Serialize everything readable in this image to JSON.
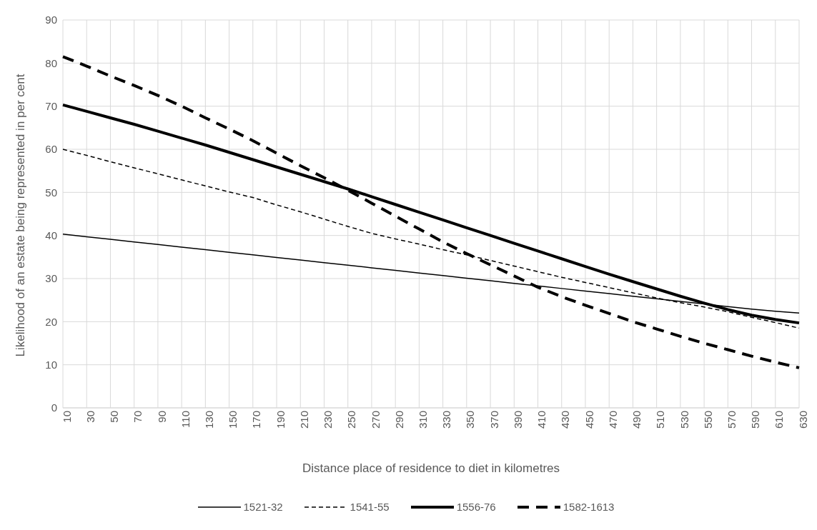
{
  "chart_data": {
    "type": "line",
    "xlabel": "Distance place of residence to diet in kilometres",
    "ylabel": "Likelihood of an estate being represented in per cent",
    "categories": [
      "10",
      "30",
      "50",
      "70",
      "90",
      "110",
      "130",
      "150",
      "170",
      "190",
      "210",
      "230",
      "250",
      "270",
      "290",
      "310",
      "330",
      "350",
      "370",
      "390",
      "410",
      "430",
      "450",
      "470",
      "490",
      "510",
      "530",
      "550",
      "570",
      "590",
      "610",
      "630"
    ],
    "series": [
      {
        "name": "1521-32",
        "color": "#000000",
        "line_style": "solid",
        "values": [
          40.3,
          39.7,
          39.1,
          38.5,
          37.9,
          37.3,
          36.7,
          36.1,
          35.5,
          34.9,
          34.3,
          33.7,
          33.1,
          32.5,
          31.9,
          31.3,
          30.7,
          30.1,
          29.5,
          28.9,
          28.3,
          27.7,
          27.1,
          26.5,
          25.9,
          25.3,
          24.7,
          24.1,
          23.5,
          22.9,
          22.4,
          22.0
        ]
      },
      {
        "name": "1541-55",
        "color": "#000000",
        "line_style": "dashed",
        "values": [
          60,
          58.6,
          57.1,
          55.7,
          54.3,
          52.9,
          51.5,
          50.1,
          48.8,
          47.1,
          45.5,
          43.8,
          42.1,
          40.5,
          39.2,
          38,
          36.7,
          35.5,
          34.2,
          32.9,
          31.6,
          30.3,
          29.1,
          27.9,
          26.7,
          25.5,
          24.4,
          23.4,
          22.3,
          21,
          19.8,
          18.5
        ]
      },
      {
        "name": "1556-76",
        "color": "#000000",
        "line_style": "solid",
        "values": [
          70.3,
          68.8,
          67.3,
          65.8,
          64.2,
          62.6,
          61,
          59.3,
          57.6,
          55.9,
          54.2,
          52.5,
          50.8,
          49,
          47.2,
          45.4,
          43.6,
          41.8,
          40,
          38.2,
          36.4,
          34.6,
          32.8,
          31,
          29.3,
          27.6,
          25.9,
          24.3,
          22.8,
          21.5,
          20.5,
          19.7
        ]
      },
      {
        "name": "1582-1613",
        "color": "#000000",
        "line_style": "dashed",
        "values": [
          81.5,
          79.3,
          77,
          74.8,
          72.5,
          70,
          67.3,
          64.7,
          62,
          59.1,
          56.2,
          53.4,
          50.5,
          47.5,
          44.5,
          41.5,
          38.5,
          35.8,
          33.2,
          30.6,
          28,
          25.8,
          23.8,
          21.9,
          20,
          18.3,
          16.6,
          15,
          13.5,
          12,
          10.6,
          9.3
        ]
      }
    ],
    "ylim": [
      0,
      90
    ],
    "yticks": [
      0,
      10,
      20,
      30,
      40,
      50,
      60,
      70,
      80,
      90
    ],
    "grid": true,
    "legend": "bottom",
    "marker": "none"
  }
}
